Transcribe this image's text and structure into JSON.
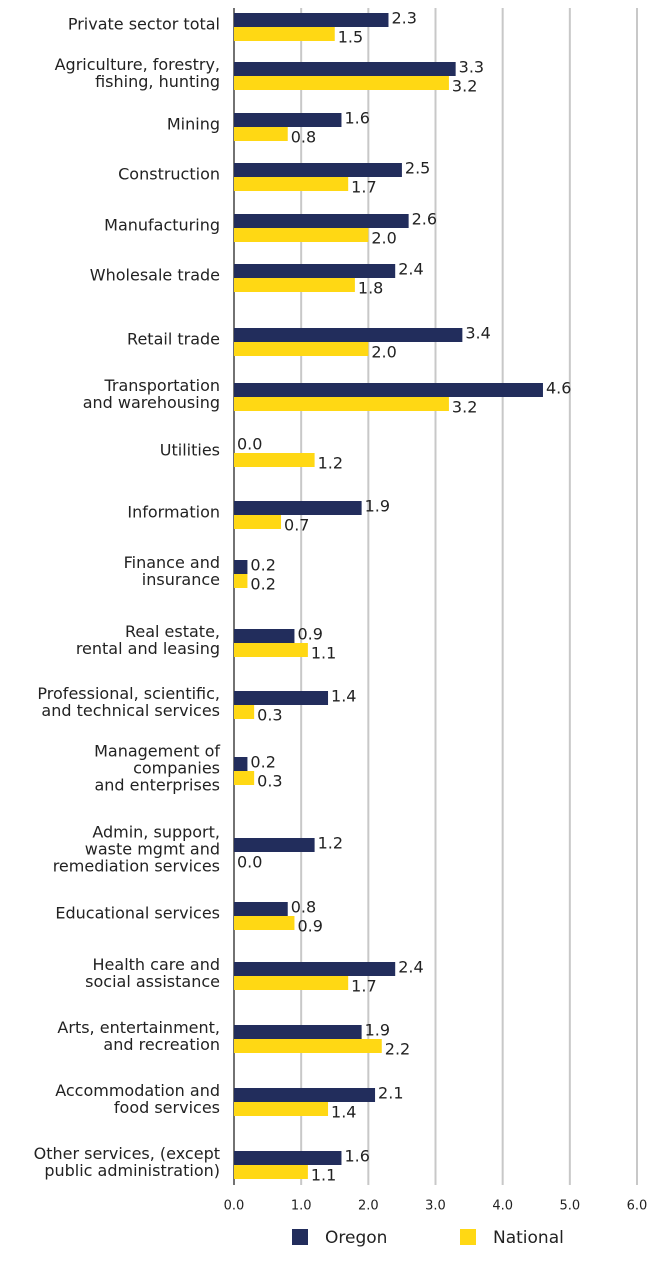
{
  "chart_data": {
    "type": "bar",
    "orientation": "horizontal",
    "categories": [
      "Private sector total",
      "Agriculture, forestry,\nfishing, hunting",
      "Mining",
      "Construction",
      "Manufacturing",
      "Wholesale trade",
      "Retail trade",
      "Transportation\nand warehousing",
      "Utilities",
      "Information",
      "Finance and\ninsurance",
      "Real estate,\nrental and leasing",
      "Professional, scientific,\nand technical services",
      "Management of\ncompanies\nand enterprises",
      "Admin, support,\nwaste mgmt and\nremediation services",
      "Educational services",
      "Health care and\nsocial assistance",
      "Arts, entertainment,\nand recreation",
      "Accommodation and\nfood services",
      "Other services, (except\npublic administration)"
    ],
    "series": [
      {
        "name": "Oregon",
        "color": "#222d5c",
        "values": [
          2.3,
          3.3,
          1.6,
          2.5,
          2.6,
          2.4,
          3.4,
          4.6,
          0.0,
          1.9,
          0.2,
          0.9,
          1.4,
          0.2,
          1.2,
          0.8,
          2.4,
          1.9,
          2.1,
          1.6
        ],
        "value_labels": [
          "2.3",
          "3.3",
          "1.6",
          "2.5",
          "2.6",
          "2.4",
          "3.4",
          "4.6",
          "0.0",
          "1.9",
          "0.2",
          "0.9",
          "1.4",
          "0.2",
          "1.2",
          "0.8",
          "2.4",
          "1.9",
          "2.1",
          "1.6"
        ]
      },
      {
        "name": "National",
        "color": "#ffd814",
        "values": [
          1.5,
          3.2,
          0.8,
          1.7,
          2.0,
          1.8,
          2.0,
          3.2,
          1.2,
          0.7,
          0.2,
          1.1,
          0.3,
          0.3,
          0.0,
          0.9,
          1.7,
          2.2,
          1.4,
          1.1
        ],
        "value_labels": [
          "1.5",
          "3.2",
          "0.8",
          "1.7",
          "2.0",
          "1.8",
          "2.0",
          "3.2",
          "1.2",
          "0.7",
          "0.2",
          "1.1",
          "0.3",
          "0.3",
          "0.0",
          "0.9",
          "1.7",
          "2.2",
          "1.4",
          "1.1"
        ]
      }
    ],
    "xlim": [
      0,
      6
    ],
    "xticks": [
      {
        "value": 0,
        "label": "0.0"
      },
      {
        "value": 1,
        "label": "1.0"
      },
      {
        "value": 2,
        "label": "2.0"
      },
      {
        "value": 3,
        "label": "3.0"
      },
      {
        "value": 4,
        "label": "4.0"
      },
      {
        "value": 5,
        "label": "5.0"
      },
      {
        "value": 6,
        "label": "6.0"
      }
    ],
    "grid": true,
    "legend": "bottom"
  }
}
